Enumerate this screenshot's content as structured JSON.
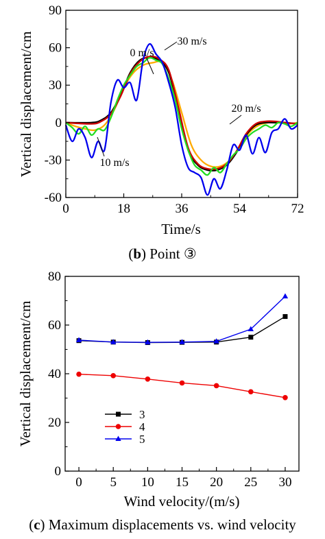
{
  "chart_data": [
    {
      "type": "line",
      "caption_letter": "b",
      "caption_text": "Point ③",
      "xlabel": "Time/s",
      "ylabel": "Vertical displacement/cm",
      "xlim": [
        0,
        72
      ],
      "ylim": [
        -60,
        90
      ],
      "xticks": [
        0,
        18,
        36,
        54,
        72
      ],
      "yticks": [
        -60,
        -30,
        0,
        30,
        60,
        90
      ],
      "grid": false,
      "annotations": [
        "0 m/s",
        "30 m/s",
        "20 m/s",
        "10 m/s"
      ],
      "series": [
        {
          "name": "0 m/s",
          "color": "#000000",
          "x": [
            0,
            8,
            11,
            14,
            17,
            20,
            23,
            26,
            29,
            32,
            35,
            38,
            41,
            44,
            47,
            50,
            53,
            56,
            59,
            62,
            65,
            68,
            72
          ],
          "y": [
            0,
            0,
            2,
            8,
            22,
            40,
            50,
            52,
            50,
            40,
            10,
            -22,
            -34,
            -38,
            -38,
            -34,
            -24,
            -10,
            -2,
            0,
            0,
            0,
            -1
          ]
        },
        {
          "name": "",
          "color": "#cc0000",
          "x": [
            0,
            8,
            11,
            14,
            17,
            20,
            23,
            26,
            29,
            32,
            35,
            38,
            41,
            44,
            47,
            50,
            53,
            56,
            59,
            62,
            65,
            68,
            72
          ],
          "y": [
            0,
            -1,
            1,
            7,
            21,
            39,
            49,
            53,
            51,
            42,
            12,
            -20,
            -33,
            -37,
            -37,
            -33,
            -23,
            -9,
            -1,
            1,
            1,
            0,
            -1
          ]
        },
        {
          "name": "20 m/s",
          "color": "#22dd22",
          "x": [
            0,
            2,
            4,
            6,
            8,
            10,
            12,
            14,
            16,
            18,
            20,
            22,
            24,
            26,
            28,
            30,
            32,
            34,
            36,
            38,
            40,
            42,
            44,
            46,
            48,
            50,
            52,
            54,
            56,
            58,
            60,
            62,
            64,
            66,
            68,
            70,
            72
          ],
          "y": [
            0,
            -4,
            -9,
            -3,
            -10,
            -5,
            -6,
            4,
            18,
            30,
            38,
            45,
            48,
            52,
            50,
            47,
            35,
            18,
            -5,
            -22,
            -34,
            -38,
            -42,
            -36,
            -40,
            -33,
            -26,
            -21,
            -13,
            -8,
            -5,
            -2,
            -4,
            0,
            -1,
            -3,
            0
          ]
        },
        {
          "name": "10 m/s",
          "color": "#ffaa00",
          "x": [
            0,
            3,
            6,
            9,
            12,
            15,
            18,
            21,
            24,
            27,
            30,
            33,
            36,
            39,
            42,
            45,
            48,
            51,
            54,
            57,
            60,
            63,
            66,
            69,
            72
          ],
          "y": [
            0,
            -3,
            -5,
            -6,
            -2,
            10,
            28,
            40,
            46,
            48,
            48,
            34,
            8,
            -18,
            -30,
            -35,
            -35,
            -30,
            -20,
            -8,
            -2,
            0,
            0,
            -1,
            0
          ]
        },
        {
          "name": "30 m/s",
          "color": "#0000ee",
          "x": [
            0,
            2,
            4,
            6,
            8,
            10,
            12,
            14,
            16,
            18,
            20,
            22,
            24,
            26,
            28,
            30,
            32,
            34,
            36,
            38,
            40,
            42,
            44,
            46,
            48,
            50,
            52,
            54,
            56,
            58,
            60,
            62,
            64,
            66,
            68,
            70,
            72
          ],
          "y": [
            -2,
            -15,
            -5,
            -12,
            -28,
            -15,
            -22,
            16,
            34,
            28,
            32,
            18,
            50,
            63,
            55,
            48,
            32,
            12,
            -18,
            -36,
            -40,
            -44,
            -58,
            -45,
            -53,
            -38,
            -18,
            -22,
            -10,
            -25,
            -12,
            -24,
            -8,
            -5,
            3,
            -5,
            -2
          ]
        }
      ]
    },
    {
      "type": "line",
      "caption_letter": "c",
      "caption_text": "Maximum displacements vs. wind velocity",
      "xlabel": "Wind velocity/(m/s)",
      "ylabel": "Vertical displacement/cm",
      "xlim": [
        -2,
        32
      ],
      "ylim": [
        0,
        80
      ],
      "xticks": [
        0,
        5,
        10,
        15,
        20,
        25,
        30
      ],
      "yticks": [
        0,
        20,
        40,
        60,
        80
      ],
      "grid": false,
      "legend_position": "lower-left",
      "x": [
        0,
        5,
        10,
        15,
        20,
        25,
        30
      ],
      "series": [
        {
          "name": "3",
          "color": "#000000",
          "marker": "square",
          "values": [
            53.6,
            53.0,
            52.8,
            52.9,
            53.0,
            55.0,
            63.5
          ]
        },
        {
          "name": "4",
          "color": "#ee0000",
          "marker": "circle",
          "values": [
            39.8,
            39.2,
            37.8,
            36.2,
            35.1,
            32.6,
            30.2
          ]
        },
        {
          "name": "5",
          "color": "#0000ee",
          "marker": "triangle",
          "values": [
            53.8,
            53.0,
            52.9,
            53.0,
            53.3,
            58.3,
            71.8
          ]
        }
      ]
    }
  ]
}
